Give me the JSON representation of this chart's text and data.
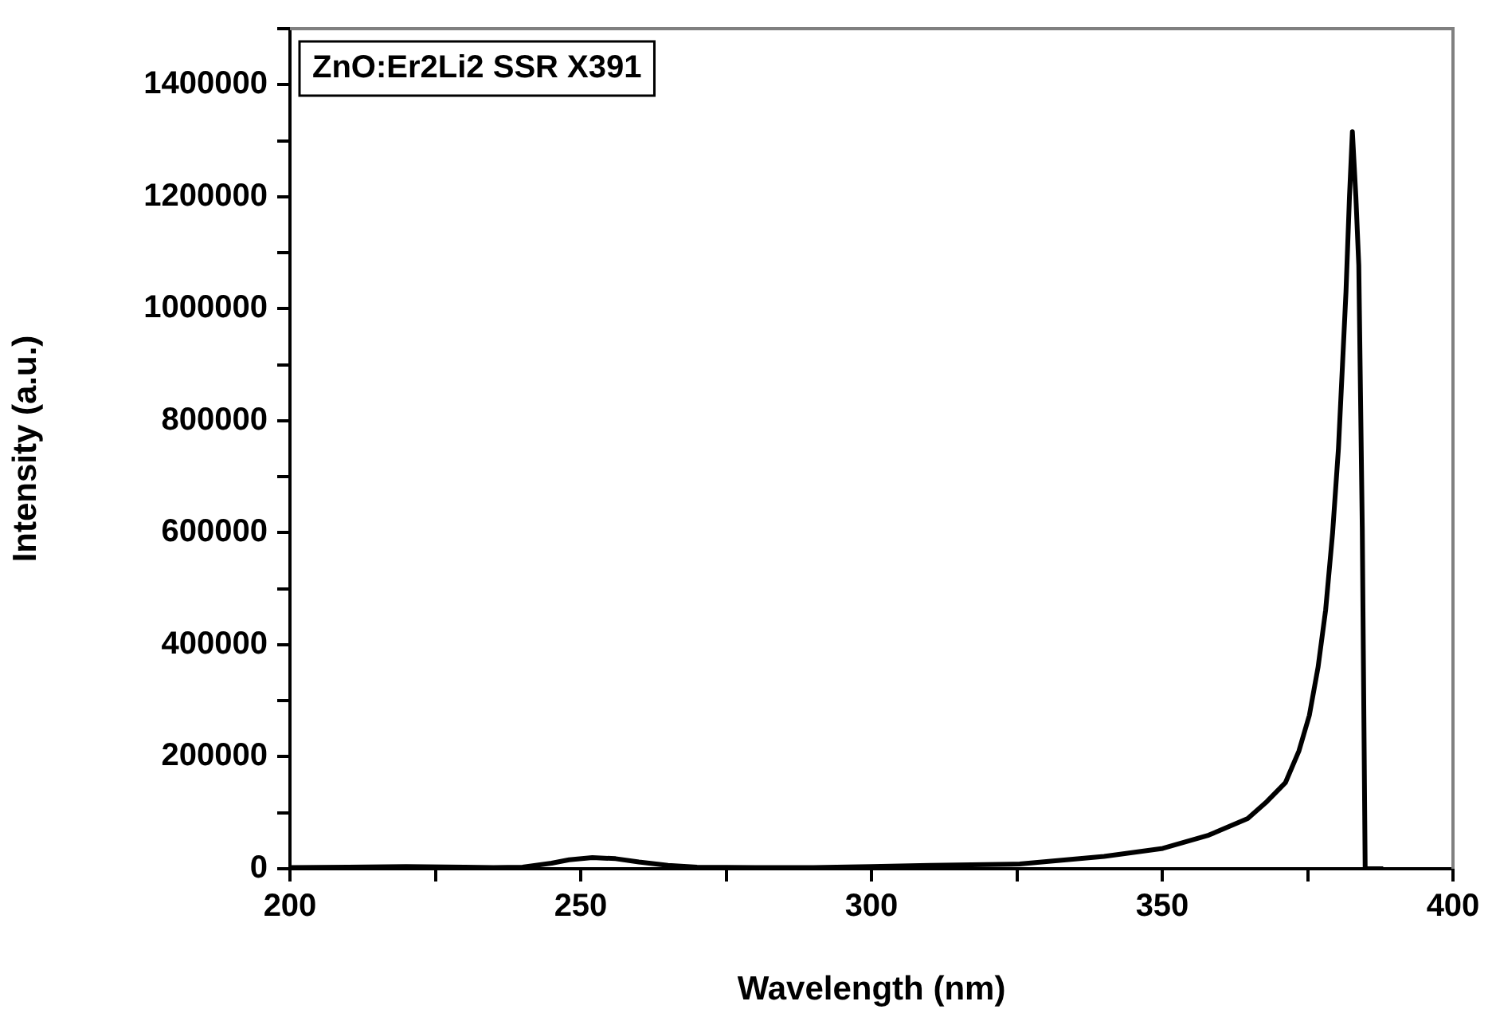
{
  "chart_data": {
    "type": "line",
    "xlabel": "Wavelength (nm)",
    "ylabel": "Intensity (a.u.)",
    "annotations": [
      "ZnO:Er2Li2 SSR X391"
    ],
    "x": [
      200,
      210,
      220,
      230,
      235,
      240,
      245,
      248,
      252,
      256,
      260,
      265,
      270,
      280,
      290,
      300,
      310,
      325.5,
      340,
      350.1,
      358,
      364.7,
      368,
      371.2,
      373.5,
      375.3,
      376.8,
      378.1,
      379.3,
      380.3,
      381,
      381.6,
      382.2,
      382.7,
      383.3,
      383.8,
      384.4,
      384.9,
      388
    ],
    "series": [
      {
        "color": "#000000",
        "values": [
          2000,
          3000,
          4000,
          3000,
          2000,
          3000,
          10000,
          16000,
          20000,
          18000,
          12000,
          6000,
          3000,
          2000,
          2000,
          4000,
          6000,
          8400,
          22000,
          36400,
          60000,
          89600,
          120000,
          154000,
          210000,
          274000,
          360000,
          462000,
          600000,
          750000,
          900000,
          1030000,
          1200000,
          1316000,
          1200000,
          1078000,
          610000,
          0,
          0
        ]
      }
    ],
    "xlim": [
      200,
      400
    ],
    "xticks": [
      200,
      {
        "value": 225,
        "label": null
      },
      250,
      {
        "value": 275,
        "label": null
      },
      300,
      {
        "value": 325,
        "label": null
      },
      350,
      {
        "value": 375,
        "label": null
      },
      400
    ],
    "ylim": [
      0,
      1500000
    ],
    "yticks": [
      0,
      {
        "value": 100000,
        "label": null
      },
      200000,
      {
        "value": 300000,
        "label": null
      },
      400000,
      {
        "value": 500000,
        "label": null
      },
      600000,
      {
        "value": 700000,
        "label": null
      },
      800000,
      {
        "value": 900000,
        "label": null
      },
      1000000,
      {
        "value": 1100000,
        "label": null
      },
      1200000,
      {
        "value": 1300000,
        "label": null
      },
      1400000,
      {
        "value": 1500000,
        "label": null
      }
    ],
    "grid": false,
    "legend": false,
    "marker": "none",
    "line_style": "solid"
  }
}
